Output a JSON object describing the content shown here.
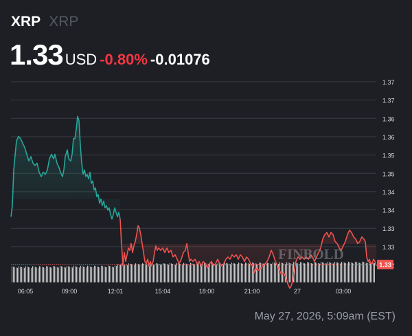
{
  "header": {
    "symbol": "XRP",
    "name": "XRP",
    "price": "1.33",
    "currency": "USD",
    "change_pct": "-0.80%",
    "change_abs": "-0.01076"
  },
  "footer": {
    "timestamp": "May 27, 2026, 5:09am (EST)"
  },
  "colors": {
    "up": "#26a69a",
    "down": "#ef5350",
    "background": "#1d1f24",
    "volume": "#e6e6e6"
  },
  "chart_data": {
    "type": "line",
    "last_value_label": "1.33",
    "reference_price": 1.33,
    "y_ticks": [
      "1.37",
      "1.37",
      "1.36",
      "1.36",
      "1.35",
      "1.35",
      "1.34",
      "1.34",
      "1.33",
      "1.33",
      "1.32"
    ],
    "x_ticks": [
      "06:05",
      "09:00",
      "12:01",
      "15:04",
      "18:00",
      "21:00",
      "27",
      "03:00"
    ],
    "watermark": "FINBOLD",
    "series": [
      {
        "color": "up",
        "points": [
          [
            16,
            1.34
          ],
          [
            18,
            1.3425
          ],
          [
            20,
            1.3505
          ],
          [
            24,
            1.357
          ],
          [
            27,
            1.358
          ],
          [
            30,
            1.3575
          ],
          [
            33,
            1.3565
          ],
          [
            36,
            1.3555
          ],
          [
            39,
            1.354
          ],
          [
            42,
            1.3525
          ],
          [
            45,
            1.3535
          ],
          [
            48,
            1.352
          ],
          [
            51,
            1.3515
          ],
          [
            54,
            1.352
          ],
          [
            57,
            1.35
          ],
          [
            60,
            1.349
          ],
          [
            63,
            1.35
          ],
          [
            66,
            1.3495
          ],
          [
            69,
            1.3505
          ],
          [
            72,
            1.353
          ],
          [
            75,
            1.354
          ],
          [
            78,
            1.353
          ],
          [
            80,
            1.354
          ],
          [
            83,
            1.352
          ],
          [
            86,
            1.351
          ],
          [
            88,
            1.35
          ],
          [
            91,
            1.349
          ],
          [
            93,
            1.3505
          ],
          [
            95,
            1.3535
          ],
          [
            98,
            1.355
          ],
          [
            100,
            1.353
          ],
          [
            103,
            1.3525
          ],
          [
            105,
            1.354
          ],
          [
            107,
            1.3575
          ],
          [
            109,
            1.3575
          ],
          [
            111,
            1.3595
          ],
          [
            113,
            1.3625
          ],
          [
            115,
            1.3615
          ],
          [
            117,
            1.356
          ],
          [
            119,
            1.352
          ],
          [
            121,
            1.3495
          ],
          [
            123,
            1.3505
          ],
          [
            125,
            1.349
          ],
          [
            127,
            1.3495
          ],
          [
            129,
            1.3485
          ],
          [
            131,
            1.35
          ],
          [
            133,
            1.3475
          ],
          [
            135,
            1.348
          ],
          [
            137,
            1.346
          ],
          [
            139,
            1.3465
          ],
          [
            141,
            1.3445
          ],
          [
            143,
            1.345
          ],
          [
            145,
            1.343
          ],
          [
            147,
            1.344
          ],
          [
            149,
            1.3425
          ],
          [
            151,
            1.3435
          ],
          [
            153,
            1.342
          ],
          [
            155,
            1.3425
          ],
          [
            157,
            1.3415
          ],
          [
            159,
            1.342
          ],
          [
            161,
            1.3405
          ],
          [
            163,
            1.3395
          ],
          [
            165,
            1.3405
          ],
          [
            167,
            1.342
          ],
          [
            169,
            1.341
          ],
          [
            171,
            1.34
          ],
          [
            173,
            1.341
          ],
          [
            175,
            1.3395
          ]
        ]
      },
      {
        "color": "down",
        "points": [
          [
            175,
            1.3395
          ],
          [
            177,
            1.334
          ],
          [
            179,
            1.329
          ],
          [
            181,
            1.332
          ],
          [
            183,
            1.33
          ],
          [
            185,
            1.3315
          ],
          [
            187,
            1.333
          ],
          [
            189,
            1.3325
          ],
          [
            191,
            1.334
          ],
          [
            193,
            1.332
          ],
          [
            195,
            1.3335
          ],
          [
            197,
            1.3345
          ],
          [
            199,
            1.336
          ],
          [
            201,
            1.338
          ],
          [
            203,
            1.3375
          ],
          [
            205,
            1.336
          ],
          [
            207,
            1.334
          ],
          [
            209,
            1.332
          ],
          [
            211,
            1.33
          ],
          [
            213,
            1.3295
          ],
          [
            215,
            1.3305
          ],
          [
            217,
            1.329
          ],
          [
            219,
            1.33
          ],
          [
            221,
            1.329
          ],
          [
            223,
            1.33
          ],
          [
            225,
            1.332
          ],
          [
            227,
            1.3335
          ],
          [
            229,
            1.3325
          ],
          [
            231,
            1.333
          ],
          [
            234,
            1.3325
          ],
          [
            237,
            1.333
          ],
          [
            240,
            1.332
          ],
          [
            243,
            1.333
          ],
          [
            246,
            1.332
          ],
          [
            249,
            1.3325
          ],
          [
            252,
            1.331
          ],
          [
            255,
            1.3315
          ],
          [
            258,
            1.3305
          ],
          [
            261,
            1.3295
          ],
          [
            264,
            1.3305
          ],
          [
            267,
            1.332
          ],
          [
            270,
            1.3325
          ],
          [
            272,
            1.334
          ],
          [
            274,
            1.332
          ],
          [
            276,
            1.33
          ],
          [
            278,
            1.3305
          ],
          [
            281,
            1.33
          ],
          [
            284,
            1.3305
          ],
          [
            287,
            1.3295
          ],
          [
            290,
            1.33
          ],
          [
            293,
            1.329
          ],
          [
            296,
            1.33
          ],
          [
            299,
            1.3295
          ],
          [
            302,
            1.3285
          ],
          [
            305,
            1.3295
          ],
          [
            308,
            1.33
          ],
          [
            311,
            1.329
          ],
          [
            314,
            1.3295
          ],
          [
            317,
            1.3305
          ],
          [
            320,
            1.3295
          ],
          [
            323,
            1.329
          ],
          [
            326,
            1.3295
          ],
          [
            329,
            1.3305
          ],
          [
            332,
            1.331
          ],
          [
            335,
            1.3305
          ],
          [
            338,
            1.3315
          ],
          [
            341,
            1.331
          ],
          [
            344,
            1.3315
          ],
          [
            347,
            1.3305
          ],
          [
            350,
            1.3315
          ],
          [
            353,
            1.331
          ],
          [
            356,
            1.33
          ],
          [
            359,
            1.331
          ],
          [
            362,
            1.3305
          ],
          [
            365,
            1.3295
          ],
          [
            368,
            1.329
          ],
          [
            371,
            1.3275
          ],
          [
            374,
            1.3285
          ],
          [
            377,
            1.328
          ],
          [
            380,
            1.3285
          ],
          [
            383,
            1.329
          ],
          [
            386,
            1.3295
          ],
          [
            389,
            1.33
          ],
          [
            392,
            1.331
          ],
          [
            395,
            1.3325
          ],
          [
            398,
            1.3315
          ],
          [
            401,
            1.33
          ],
          [
            404,
            1.329
          ],
          [
            407,
            1.328
          ],
          [
            410,
            1.327
          ],
          [
            413,
            1.3275
          ],
          [
            416,
            1.3265
          ],
          [
            419,
            1.325
          ],
          [
            422,
            1.324
          ],
          [
            424,
            1.3245
          ],
          [
            426,
            1.3255
          ],
          [
            428,
            1.3275
          ],
          [
            431,
            1.33
          ],
          [
            434,
            1.331
          ],
          [
            437,
            1.3305
          ],
          [
            440,
            1.331
          ],
          [
            443,
            1.3305
          ],
          [
            446,
            1.331
          ],
          [
            449,
            1.3305
          ],
          [
            452,
            1.3315
          ],
          [
            455,
            1.331
          ],
          [
            458,
            1.33
          ],
          [
            461,
            1.331
          ],
          [
            464,
            1.332
          ],
          [
            467,
            1.333
          ],
          [
            470,
            1.335
          ],
          [
            473,
            1.336
          ],
          [
            476,
            1.3365
          ],
          [
            479,
            1.3355
          ],
          [
            482,
            1.3365
          ],
          [
            485,
            1.336
          ],
          [
            488,
            1.3345
          ],
          [
            491,
            1.334
          ],
          [
            494,
            1.333
          ],
          [
            497,
            1.3325
          ],
          [
            500,
            1.3335
          ],
          [
            503,
            1.3345
          ],
          [
            506,
            1.336
          ],
          [
            509,
            1.337
          ],
          [
            512,
            1.3365
          ],
          [
            515,
            1.3355
          ],
          [
            518,
            1.335
          ],
          [
            521,
            1.334
          ],
          [
            524,
            1.3345
          ],
          [
            527,
            1.3355
          ],
          [
            530,
            1.335
          ],
          [
            532,
            1.3345
          ],
          [
            534,
            1.331
          ],
          [
            536,
            1.33
          ],
          [
            538,
            1.3305
          ],
          [
            540,
            1.3295
          ],
          [
            542,
            1.3295
          ],
          [
            544,
            1.3305
          ],
          [
            546,
            1.33
          ],
          [
            548,
            1.329
          ]
        ]
      }
    ]
  }
}
